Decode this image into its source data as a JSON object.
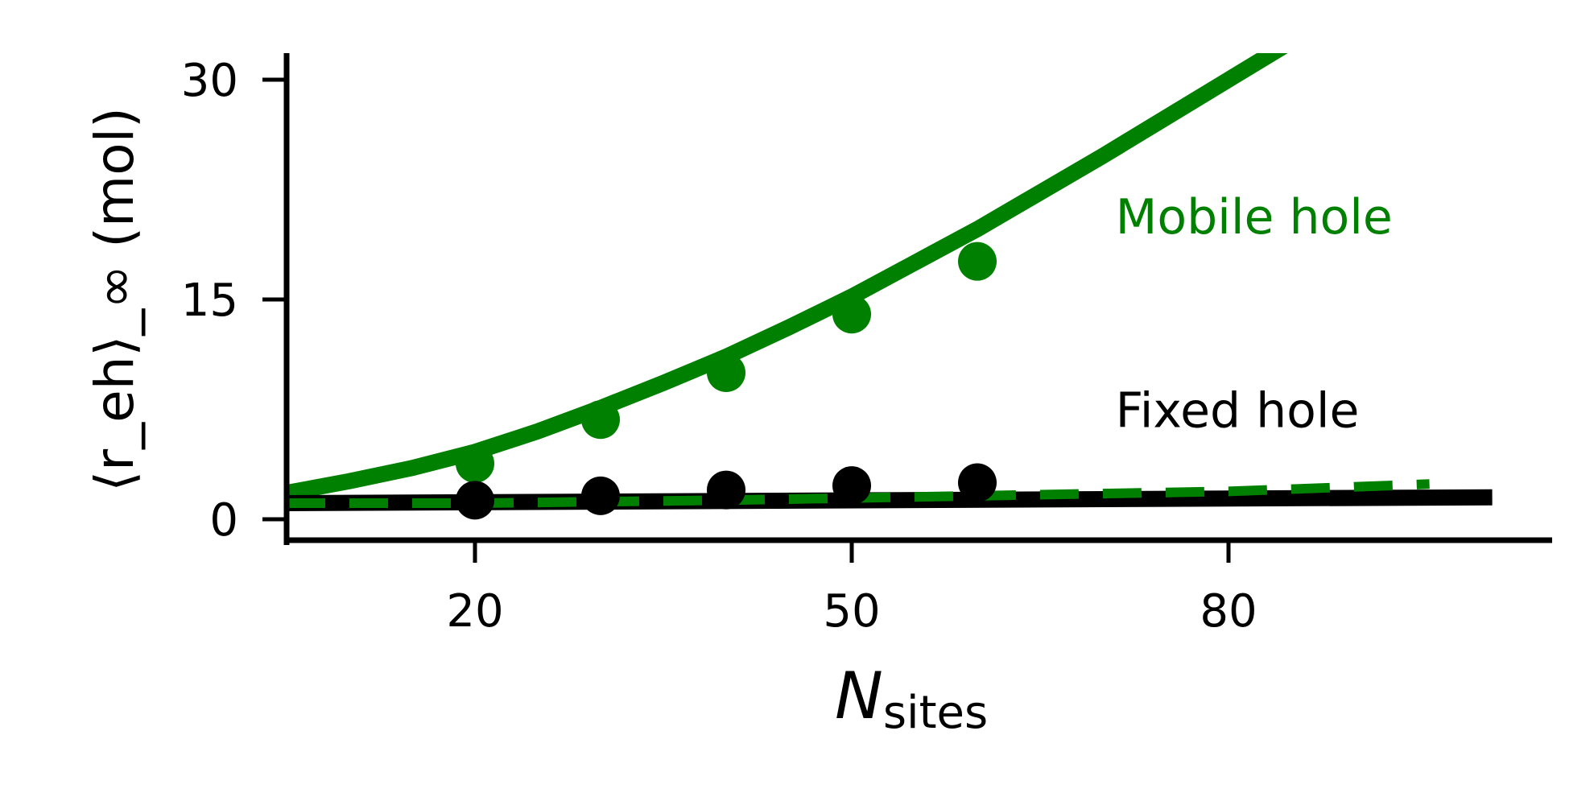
{
  "chart_data": {
    "type": "line",
    "xlabel": {
      "main": "N",
      "sub": "sites"
    },
    "ylabel": "⟨r_eh⟩_∞ (mol)",
    "xlim": [
      5,
      106
    ],
    "ylim": [
      -1.5,
      32
    ],
    "xticks": [
      20,
      50,
      80
    ],
    "yticks": [
      0,
      15,
      30
    ],
    "xtick_labels": [
      "20",
      "50",
      "80"
    ],
    "ytick_labels": [
      "0",
      "15",
      "30"
    ],
    "grid": false,
    "legend": "none",
    "colors": {
      "mobile": "#008000",
      "fixed": "#000000"
    },
    "annotations": [
      {
        "id": "mobile",
        "text": "Mobile hole",
        "x": 71,
        "y": 19.5,
        "color": "#008000"
      },
      {
        "id": "fixed",
        "text": "Fixed hole",
        "x": 71,
        "y": 6.3,
        "color": "#000000"
      }
    ],
    "series": [
      {
        "id": "mobile-points",
        "kind": "scatter",
        "color": "#008000",
        "x": [
          20,
          30,
          40,
          50,
          60
        ],
        "y": [
          3.8,
          6.8,
          10.0,
          14.0,
          17.6
        ]
      },
      {
        "id": "fixed-points",
        "kind": "scatter",
        "color": "#000000",
        "x": [
          20,
          30,
          40,
          50,
          60
        ],
        "y": [
          1.3,
          1.6,
          2.0,
          2.3,
          2.5
        ]
      },
      {
        "id": "mobile-fit",
        "kind": "line",
        "style": "solid",
        "color": "#008000",
        "x": [
          5,
          10,
          15,
          20,
          25,
          30,
          35,
          40,
          45,
          50,
          55,
          60,
          65,
          70,
          75,
          80,
          85
        ],
        "y": [
          1.8,
          2.6,
          3.5,
          4.6,
          6.0,
          7.6,
          9.3,
          11.1,
          13.1,
          15.2,
          17.5,
          19.8,
          22.3,
          24.8,
          27.4,
          30.0,
          32.6
        ]
      },
      {
        "id": "fixed-fit",
        "kind": "line",
        "style": "solid",
        "color": "#000000",
        "x": [
          5,
          101
        ],
        "y": [
          1.1,
          1.5
        ]
      },
      {
        "id": "mobile-fixed-fit",
        "kind": "line",
        "style": "dashed",
        "color": "#008000",
        "x": [
          5,
          20,
          40,
          60,
          80,
          96
        ],
        "y": [
          1.1,
          1.1,
          1.3,
          1.6,
          1.9,
          2.4
        ]
      }
    ]
  }
}
